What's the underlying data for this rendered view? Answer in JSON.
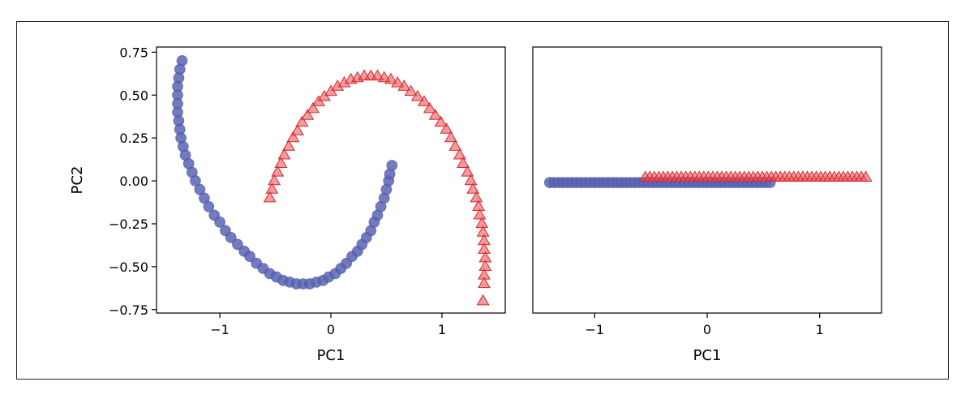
{
  "chart_data": [
    {
      "type": "scatter",
      "title": "",
      "xlabel": "PC1",
      "ylabel": "PC2",
      "xlim": [
        -1.57,
        1.57
      ],
      "ylim": [
        -0.77,
        0.78
      ],
      "xticks": [
        -1,
        0,
        1
      ],
      "xtick_labels": [
        "−1",
        "0",
        "1"
      ],
      "yticks": [
        0.75,
        0.5,
        0.25,
        0.0,
        -0.25,
        -0.5,
        -0.75
      ],
      "ytick_labels": [
        "0.75",
        "0.50",
        "0.25",
        "0.00",
        "−0.25",
        "−0.50",
        "−0.75"
      ],
      "grid": false,
      "series": [
        {
          "marker": "circle",
          "color": "#5b64b4",
          "x": [
            -1.34,
            -1.36,
            -1.37,
            -1.38,
            -1.38,
            -1.38,
            -1.38,
            -1.37,
            -1.36,
            -1.35,
            -1.33,
            -1.31,
            -1.28,
            -1.25,
            -1.22,
            -1.18,
            -1.14,
            -1.1,
            -1.05,
            -1.0,
            -0.95,
            -0.9,
            -0.84,
            -0.78,
            -0.73,
            -0.67,
            -0.61,
            -0.55,
            -0.49,
            -0.43,
            -0.37,
            -0.31,
            -0.25,
            -0.19,
            -0.13,
            -0.07,
            -0.02,
            0.04,
            0.09,
            0.14,
            0.19,
            0.24,
            0.28,
            0.32,
            0.36,
            0.39,
            0.42,
            0.45,
            0.48,
            0.5,
            0.52,
            0.53,
            0.55
          ],
          "y": [
            0.7,
            0.65,
            0.6,
            0.55,
            0.5,
            0.45,
            0.4,
            0.35,
            0.3,
            0.25,
            0.2,
            0.15,
            0.1,
            0.05,
            0.0,
            -0.05,
            -0.1,
            -0.15,
            -0.2,
            -0.24,
            -0.29,
            -0.33,
            -0.37,
            -0.41,
            -0.44,
            -0.48,
            -0.51,
            -0.54,
            -0.56,
            -0.58,
            -0.59,
            -0.6,
            -0.6,
            -0.6,
            -0.59,
            -0.58,
            -0.56,
            -0.54,
            -0.51,
            -0.48,
            -0.44,
            -0.41,
            -0.37,
            -0.33,
            -0.29,
            -0.24,
            -0.2,
            -0.15,
            -0.1,
            -0.05,
            0.0,
            0.04,
            0.09
          ]
        },
        {
          "marker": "triangle",
          "color": "#e8474c",
          "x": [
            -0.55,
            -0.53,
            -0.51,
            -0.48,
            -0.45,
            -0.42,
            -0.38,
            -0.34,
            -0.3,
            -0.26,
            -0.21,
            -0.16,
            -0.11,
            -0.06,
            0.0,
            0.06,
            0.12,
            0.18,
            0.24,
            0.3,
            0.36,
            0.42,
            0.48,
            0.54,
            0.6,
            0.66,
            0.72,
            0.78,
            0.84,
            0.89,
            0.94,
            0.99,
            1.04,
            1.08,
            1.12,
            1.16,
            1.19,
            1.23,
            1.26,
            1.28,
            1.31,
            1.33,
            1.34,
            1.36,
            1.37,
            1.38,
            1.38,
            1.39,
            1.39,
            1.38,
            1.38,
            1.37
          ],
          "y": [
            -0.1,
            -0.05,
            0.0,
            0.05,
            0.1,
            0.15,
            0.2,
            0.25,
            0.29,
            0.34,
            0.38,
            0.42,
            0.46,
            0.49,
            0.52,
            0.55,
            0.57,
            0.59,
            0.6,
            0.61,
            0.61,
            0.61,
            0.6,
            0.59,
            0.57,
            0.55,
            0.52,
            0.49,
            0.46,
            0.42,
            0.38,
            0.34,
            0.3,
            0.25,
            0.2,
            0.15,
            0.1,
            0.05,
            0.0,
            -0.05,
            -0.1,
            -0.15,
            -0.2,
            -0.25,
            -0.3,
            -0.35,
            -0.4,
            -0.45,
            -0.5,
            -0.55,
            -0.6,
            -0.7
          ]
        }
      ]
    },
    {
      "type": "scatter",
      "title": "",
      "xlabel": "PC1",
      "ylabel": "",
      "xlim": [
        -1.55,
        1.55
      ],
      "ylim": [
        -0.77,
        0.78
      ],
      "xticks": [
        -1,
        0,
        1
      ],
      "xtick_labels": [
        "−1",
        "0",
        "1"
      ],
      "yticks": [],
      "grid": false,
      "series": [
        {
          "marker": "circle",
          "color": "#5b64b4",
          "x": [
            -1.4,
            -1.36,
            -1.32,
            -1.28,
            -1.24,
            -1.2,
            -1.16,
            -1.12,
            -1.08,
            -1.04,
            -1.0,
            -0.96,
            -0.92,
            -0.88,
            -0.84,
            -0.8,
            -0.76,
            -0.72,
            -0.68,
            -0.64,
            -0.6,
            -0.56,
            -0.52,
            -0.48,
            -0.44,
            -0.4,
            -0.36,
            -0.32,
            -0.28,
            -0.24,
            -0.2,
            -0.16,
            -0.12,
            -0.08,
            -0.04,
            0.0,
            0.04,
            0.08,
            0.12,
            0.16,
            0.2,
            0.24,
            0.28,
            0.32,
            0.36,
            0.4,
            0.44,
            0.48,
            0.52,
            0.56
          ],
          "y": [
            -0.01,
            -0.01,
            -0.01,
            -0.01,
            -0.01,
            -0.01,
            -0.01,
            -0.01,
            -0.01,
            -0.01,
            -0.01,
            -0.01,
            -0.01,
            -0.01,
            -0.01,
            -0.01,
            -0.01,
            -0.01,
            -0.01,
            -0.01,
            -0.01,
            -0.01,
            -0.01,
            -0.01,
            -0.01,
            -0.01,
            -0.01,
            -0.01,
            -0.01,
            -0.01,
            -0.01,
            -0.01,
            -0.01,
            -0.01,
            -0.01,
            -0.01,
            -0.01,
            -0.01,
            -0.01,
            -0.01,
            -0.01,
            -0.01,
            -0.01,
            -0.01,
            -0.01,
            -0.01,
            -0.01,
            -0.01,
            -0.01,
            -0.01
          ]
        },
        {
          "marker": "triangle",
          "color": "#e8474c",
          "x": [
            -0.55,
            -0.51,
            -0.47,
            -0.43,
            -0.39,
            -0.35,
            -0.31,
            -0.27,
            -0.23,
            -0.19,
            -0.15,
            -0.11,
            -0.07,
            -0.03,
            0.01,
            0.05,
            0.09,
            0.13,
            0.17,
            0.21,
            0.25,
            0.29,
            0.33,
            0.37,
            0.41,
            0.45,
            0.49,
            0.53,
            0.57,
            0.61,
            0.65,
            0.69,
            0.73,
            0.77,
            0.81,
            0.85,
            0.89,
            0.93,
            0.97,
            1.01,
            1.05,
            1.09,
            1.13,
            1.17,
            1.21,
            1.25,
            1.29,
            1.33,
            1.37,
            1.41
          ],
          "y": [
            0.02,
            0.02,
            0.02,
            0.02,
            0.02,
            0.02,
            0.02,
            0.02,
            0.02,
            0.02,
            0.02,
            0.02,
            0.02,
            0.02,
            0.02,
            0.02,
            0.02,
            0.02,
            0.02,
            0.02,
            0.02,
            0.02,
            0.02,
            0.02,
            0.02,
            0.02,
            0.02,
            0.02,
            0.02,
            0.02,
            0.02,
            0.02,
            0.02,
            0.02,
            0.02,
            0.02,
            0.02,
            0.02,
            0.02,
            0.02,
            0.02,
            0.02,
            0.02,
            0.02,
            0.02,
            0.02,
            0.02,
            0.02,
            0.02,
            0.02
          ]
        }
      ]
    }
  ]
}
